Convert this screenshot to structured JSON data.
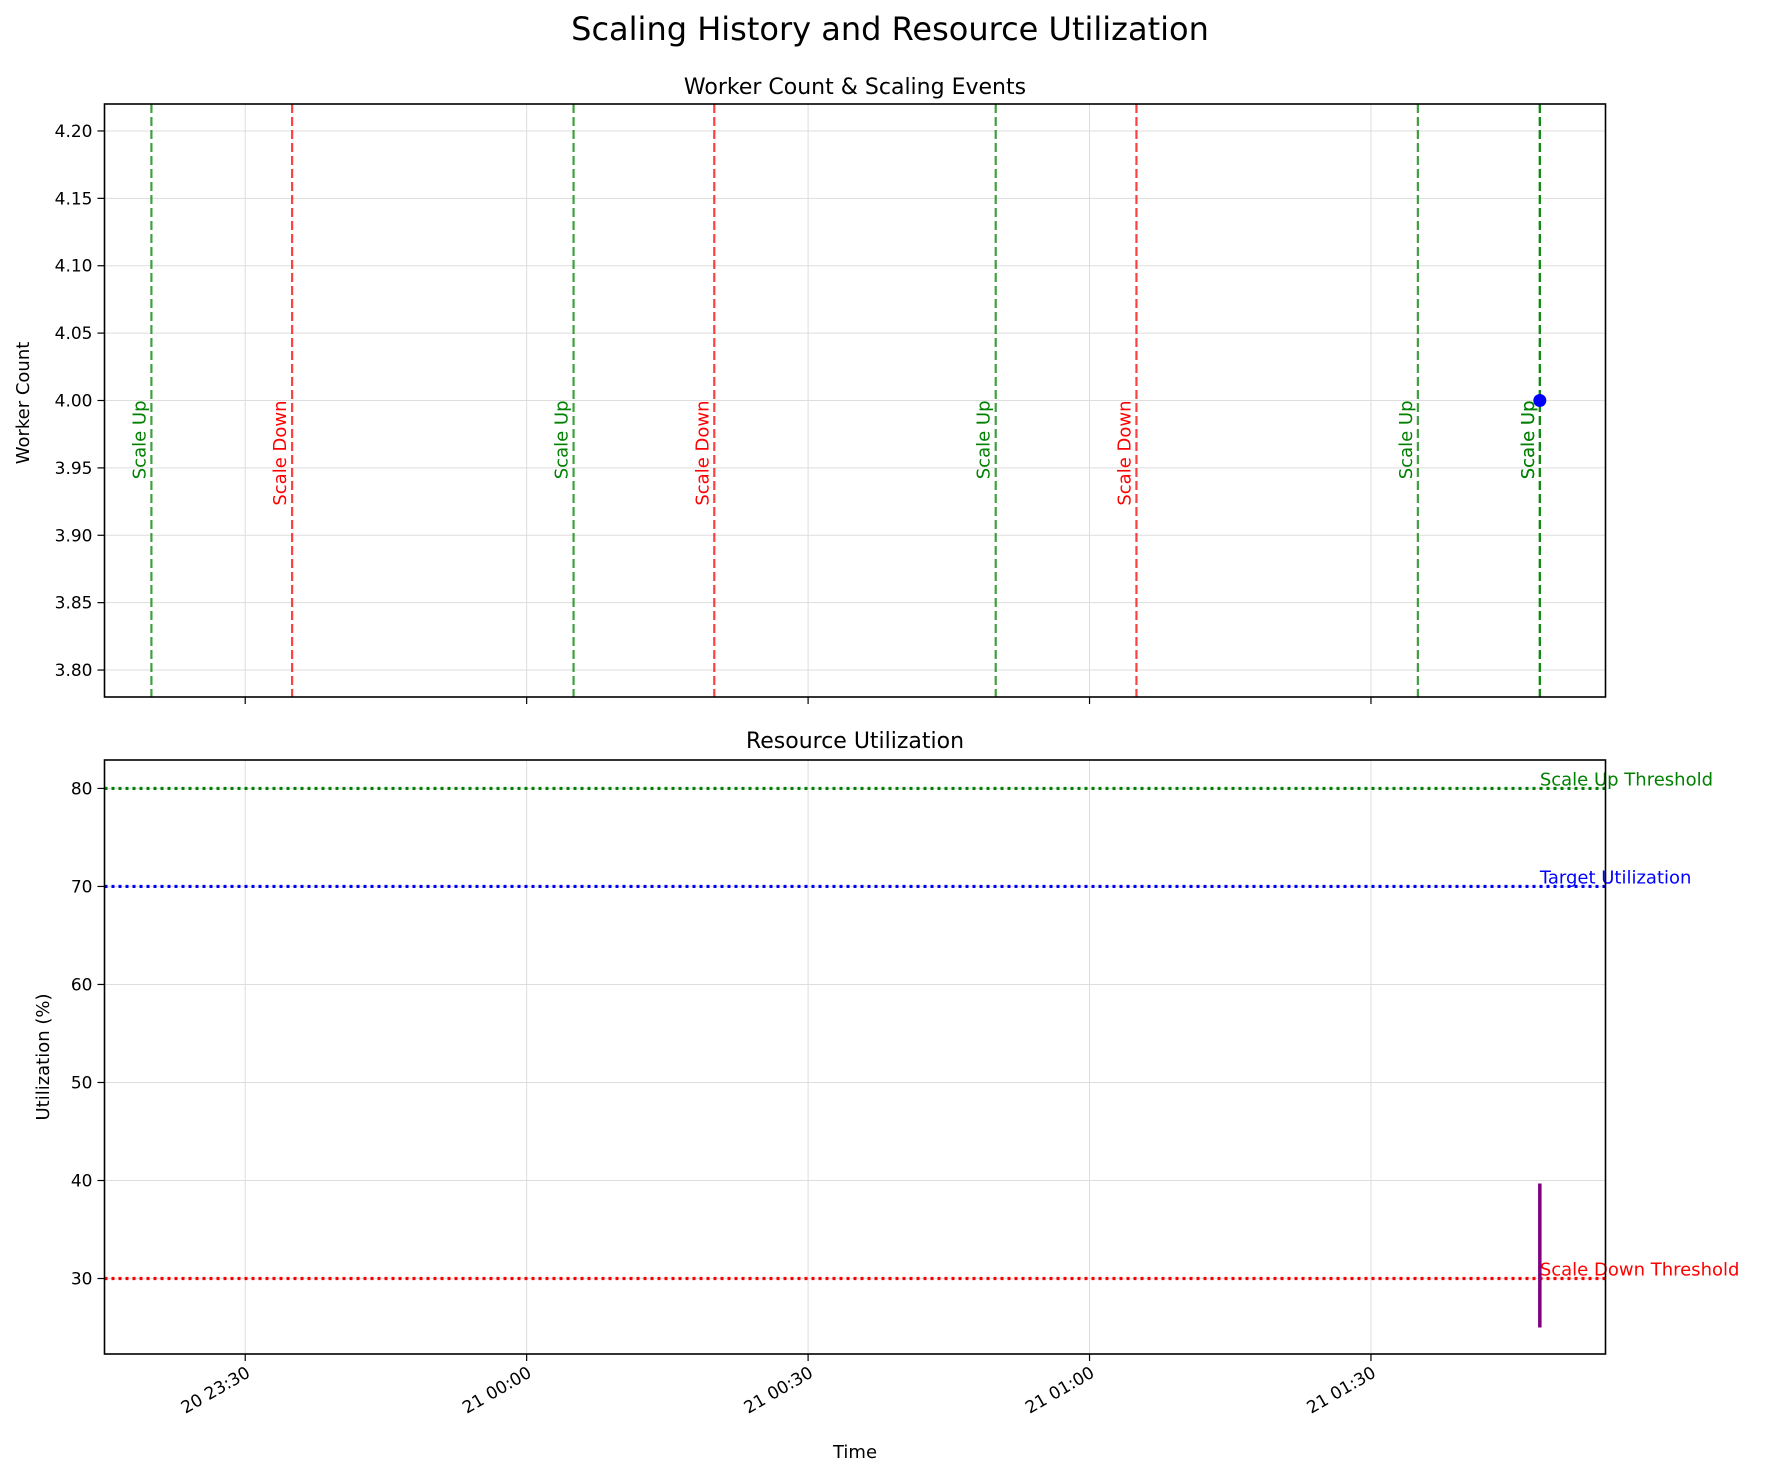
{
  "figure_title": "Scaling History and Resource Utilization",
  "chart_data": [
    {
      "type": "line",
      "title": "Worker Count & Scaling Events",
      "xlabel": "",
      "ylabel": "Worker Count",
      "ylim": [
        3.78,
        4.22
      ],
      "yticks": [
        3.8,
        3.85,
        3.9,
        3.95,
        4.0,
        4.05,
        4.1,
        4.15,
        4.2
      ],
      "ytick_labels": [
        "3.80",
        "3.85",
        "3.90",
        "3.95",
        "4.00",
        "4.05",
        "4.10",
        "4.15",
        "4.20"
      ],
      "grid": true,
      "series": [
        {
          "color": "#0000ff",
          "points": [
            {
              "x": "01:48:00",
              "y": 4.0
            }
          ]
        }
      ],
      "events": [
        {
          "label": "Scale Up",
          "time": "23:20:00",
          "color": "#008000"
        },
        {
          "label": "Scale Down",
          "time": "23:35:00",
          "color": "#ff0000"
        },
        {
          "label": "Scale Up",
          "time": "00:05:00",
          "color": "#008000"
        },
        {
          "label": "Scale Down",
          "time": "00:20:00",
          "color": "#ff0000"
        },
        {
          "label": "Scale Up",
          "time": "00:50:00",
          "color": "#008000"
        },
        {
          "label": "Scale Down",
          "time": "01:05:00",
          "color": "#ff0000"
        },
        {
          "label": "Scale Up",
          "time": "01:35:00",
          "color": "#008000"
        },
        {
          "label": "Scale Up",
          "time": "01:48:00",
          "color": "#008000"
        },
        {
          "label": "Scale Up",
          "time": "01:48:00",
          "color": "#008000"
        }
      ]
    },
    {
      "type": "line",
      "title": "Resource Utilization",
      "xlabel": "Time",
      "ylabel": "Utilization (%)",
      "ylim": [
        22.3,
        82.9
      ],
      "yticks": [
        30,
        40,
        50,
        60,
        70,
        80
      ],
      "ytick_labels": [
        "30",
        "40",
        "50",
        "60",
        "70",
        "80"
      ],
      "grid": true,
      "series": [
        {
          "color": "#800080",
          "points": [
            {
              "x": "01:48:00",
              "y": 25.0
            },
            {
              "x": "01:48:00",
              "y": 39.7
            }
          ]
        }
      ],
      "thresholds": [
        {
          "label": "Scale Up Threshold",
          "value": 80,
          "color": "#008000"
        },
        {
          "label": "Target Utilization",
          "value": 70,
          "color": "#0000ff"
        },
        {
          "label": "Scale Down Threshold",
          "value": 30,
          "color": "#ff0000"
        }
      ]
    }
  ],
  "x_axis": {
    "range": [
      "23:15:00",
      "01:55:00"
    ],
    "ticks": [
      {
        "time": "23:30:00",
        "label": "20 23:30"
      },
      {
        "time": "00:00:00",
        "label": "21 00:00"
      },
      {
        "time": "00:30:00",
        "label": "21 00:30"
      },
      {
        "time": "01:00:00",
        "label": "21 01:00"
      },
      {
        "time": "01:30:00",
        "label": "21 01:30"
      }
    ]
  }
}
